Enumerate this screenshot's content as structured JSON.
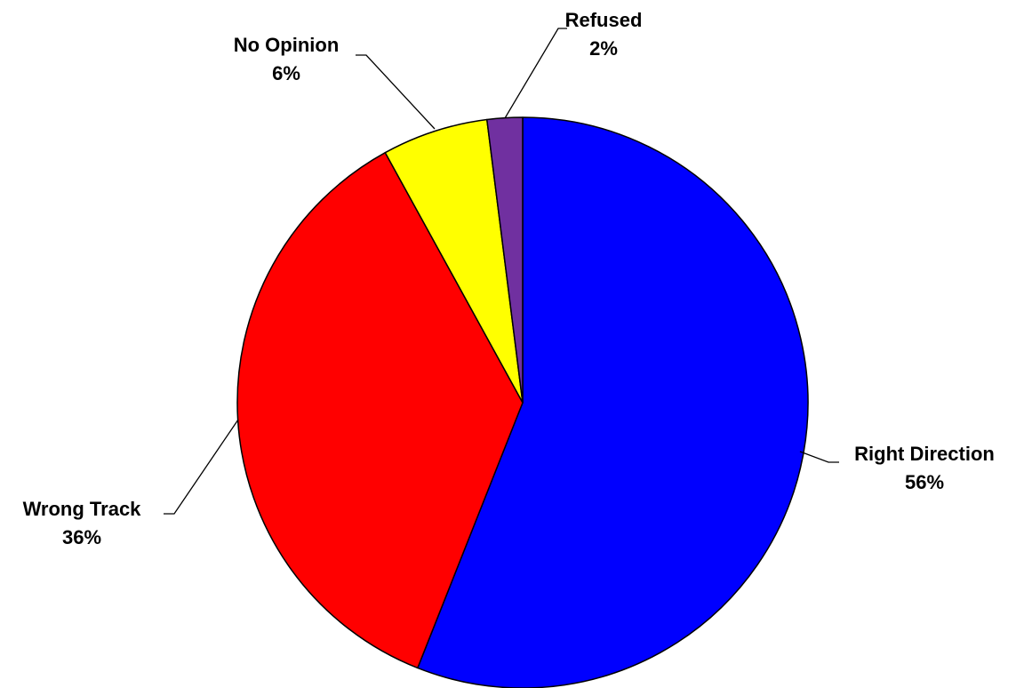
{
  "chart_data": {
    "type": "pie",
    "title": "",
    "categories": [
      "Right Direction",
      "Wrong Track",
      "No Opinion",
      "Refused"
    ],
    "values": [
      56,
      36,
      6,
      2
    ],
    "value_labels": [
      "56%",
      "36%",
      "6%",
      "2%"
    ],
    "colors": [
      "#0000ff",
      "#ff0000",
      "#ffff00",
      "#7030a0"
    ],
    "start_angle": "12 o'clock",
    "direction": "clockwise",
    "legend": "none"
  }
}
